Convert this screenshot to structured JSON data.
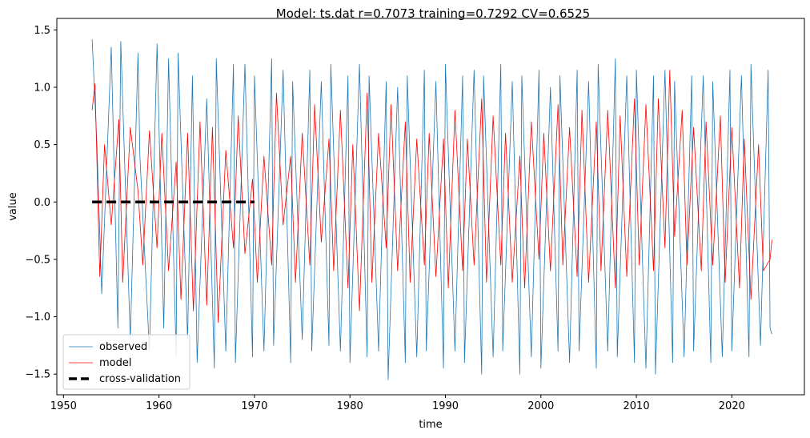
{
  "chart_data": {
    "type": "line",
    "title": "Model: ts.dat  r=0.7073  training=0.7292  CV=0.6525",
    "xlabel": "time",
    "ylabel": "value",
    "xlim": [
      1949.3,
      2027.6
    ],
    "ylim": [
      -1.68,
      1.6
    ],
    "x_ticks": [
      1950,
      1960,
      1970,
      1980,
      1990,
      2000,
      2010,
      2020
    ],
    "y_ticks": [
      -1.5,
      -1.0,
      -0.5,
      0.0,
      0.5,
      1.0,
      1.5
    ],
    "x_tick_labels": [
      "1950",
      "1960",
      "1970",
      "1980",
      "1990",
      "2000",
      "2010",
      "2020"
    ],
    "y_tick_labels": [
      "−1.5",
      "−1.0",
      "−0.5",
      "0.0",
      "0.5",
      "1.0",
      "1.5"
    ],
    "legend_position": "lower-left",
    "series": [
      {
        "name": "observed",
        "color": "#1f77b4",
        "x": [
          1953.0,
          1953.5,
          1954.0,
          1955.0,
          1955.7,
          1956.0,
          1957.0,
          1957.8,
          1958.0,
          1959.0,
          1959.8,
          1960.5,
          1961.0,
          1961.8,
          1962.0,
          1963.0,
          1963.5,
          1964.0,
          1965.0,
          1965.8,
          1966.0,
          1967.0,
          1967.8,
          1968.0,
          1969.0,
          1969.8,
          1970.0,
          1971.0,
          1971.8,
          1972.0,
          1973.0,
          1973.8,
          1974.0,
          1975.0,
          1975.8,
          1976.0,
          1977.0,
          1977.8,
          1978.0,
          1979.0,
          1979.8,
          1980.0,
          1981.0,
          1981.8,
          1982.0,
          1983.0,
          1983.8,
          1984.0,
          1985.0,
          1985.8,
          1986.0,
          1987.0,
          1987.8,
          1988.0,
          1989.0,
          1989.8,
          1990.0,
          1991.0,
          1991.8,
          1992.0,
          1993.0,
          1993.8,
          1994.0,
          1995.0,
          1995.8,
          1996.0,
          1997.0,
          1997.8,
          1998.0,
          1999.0,
          1999.8,
          2000.0,
          2001.0,
          2001.8,
          2002.0,
          2003.0,
          2003.8,
          2004.0,
          2005.0,
          2005.8,
          2006.0,
          2007.0,
          2007.8,
          2008.0,
          2009.0,
          2009.8,
          2010.0,
          2011.0,
          2011.8,
          2012.0,
          2013.0,
          2013.8,
          2014.0,
          2015.0,
          2015.8,
          2016.0,
          2017.0,
          2017.8,
          2018.0,
          2019.0,
          2019.8,
          2020.0,
          2021.0,
          2021.8,
          2022.0,
          2023.0,
          2023.8,
          2024.0,
          2024.2
        ],
        "y": [
          1.42,
          0.5,
          -0.8,
          1.35,
          -1.1,
          1.4,
          -1.2,
          1.3,
          0.4,
          -1.3,
          1.38,
          -1.1,
          1.25,
          -1.35,
          1.3,
          -1.2,
          1.1,
          -1.4,
          0.9,
          -1.45,
          1.25,
          -1.3,
          1.2,
          -1.4,
          1.2,
          -1.35,
          1.1,
          -1.3,
          1.25,
          -1.25,
          1.15,
          -1.4,
          1.05,
          -1.2,
          1.15,
          -1.3,
          1.05,
          -1.25,
          1.2,
          -1.3,
          1.1,
          -1.4,
          1.2,
          -1.35,
          1.1,
          -1.3,
          1.05,
          -1.55,
          1.0,
          -1.4,
          1.1,
          -1.35,
          1.15,
          -1.3,
          1.05,
          -1.45,
          1.2,
          -1.3,
          1.1,
          -1.4,
          1.15,
          -1.5,
          1.1,
          -1.35,
          1.2,
          -1.3,
          1.05,
          -1.5,
          1.1,
          -1.35,
          1.15,
          -1.45,
          1.0,
          -1.3,
          1.1,
          -1.4,
          1.15,
          -1.3,
          1.05,
          -1.45,
          1.2,
          -1.3,
          1.25,
          -1.35,
          1.1,
          -1.4,
          1.15,
          -1.45,
          1.1,
          -1.5,
          1.15,
          -1.4,
          1.05,
          -1.35,
          1.1,
          -1.3,
          1.1,
          -1.4,
          1.05,
          -1.35,
          1.15,
          -1.3,
          1.1,
          -1.35,
          1.2,
          -1.25,
          1.15,
          -1.1,
          -1.15
        ]
      },
      {
        "name": "model",
        "color": "#ff0000",
        "x": [
          1953.0,
          1953.3,
          1953.8,
          1954.3,
          1955.0,
          1955.8,
          1956.2,
          1957.0,
          1957.8,
          1958.3,
          1959.0,
          1959.8,
          1960.3,
          1961.0,
          1961.8,
          1962.3,
          1963.0,
          1963.6,
          1964.3,
          1965.0,
          1965.6,
          1966.2,
          1967.0,
          1967.8,
          1968.3,
          1969.0,
          1969.8,
          1970.3,
          1971.0,
          1971.8,
          1972.3,
          1973.0,
          1973.8,
          1974.3,
          1975.0,
          1975.8,
          1976.3,
          1977.0,
          1977.8,
          1978.3,
          1979.0,
          1979.8,
          1980.3,
          1981.0,
          1981.8,
          1982.3,
          1983.0,
          1983.8,
          1984.3,
          1985.0,
          1985.8,
          1986.3,
          1987.0,
          1987.8,
          1988.3,
          1989.0,
          1989.8,
          1990.3,
          1991.0,
          1991.8,
          1992.3,
          1993.0,
          1993.8,
          1994.3,
          1995.0,
          1995.8,
          1996.3,
          1997.0,
          1997.8,
          1998.3,
          1999.0,
          1999.8,
          2000.3,
          2001.0,
          2001.8,
          2002.3,
          2003.0,
          2003.8,
          2004.3,
          2005.0,
          2005.8,
          2006.3,
          2007.0,
          2007.8,
          2008.3,
          2009.0,
          2009.8,
          2010.3,
          2011.0,
          2011.8,
          2012.3,
          2013.0,
          2013.5,
          2014.0,
          2014.8,
          2015.3,
          2016.0,
          2016.8,
          2017.3,
          2018.0,
          2018.8,
          2019.3,
          2020.0,
          2020.8,
          2021.3,
          2022.0,
          2022.8,
          2023.3,
          2024.0,
          2024.2
        ],
        "y": [
          0.8,
          1.03,
          -0.65,
          0.5,
          -0.2,
          0.72,
          -0.7,
          0.65,
          0.1,
          -0.55,
          0.62,
          -0.4,
          0.6,
          -0.6,
          0.35,
          -0.85,
          0.6,
          -0.95,
          0.7,
          -0.9,
          0.65,
          -1.05,
          0.45,
          -0.4,
          0.75,
          -0.45,
          0.2,
          -0.7,
          0.4,
          -0.55,
          0.95,
          -0.2,
          0.4,
          -0.7,
          0.6,
          -0.55,
          0.85,
          -0.35,
          0.55,
          -0.6,
          0.8,
          -0.75,
          0.5,
          -0.95,
          0.95,
          -0.7,
          0.6,
          -0.4,
          0.85,
          -0.6,
          0.7,
          -0.7,
          0.55,
          -0.55,
          0.6,
          -0.65,
          0.55,
          -0.75,
          0.8,
          -0.6,
          0.55,
          -0.55,
          0.9,
          -0.7,
          0.75,
          -0.55,
          0.6,
          -0.7,
          0.4,
          -0.75,
          0.7,
          -0.5,
          0.6,
          -0.6,
          0.85,
          -0.55,
          0.65,
          -0.65,
          0.8,
          -0.7,
          0.7,
          -0.6,
          0.8,
          -0.75,
          0.75,
          -0.65,
          0.9,
          -0.55,
          0.85,
          -0.6,
          0.9,
          -0.4,
          1.15,
          -0.3,
          0.8,
          -0.55,
          0.65,
          -0.6,
          0.7,
          -0.55,
          0.75,
          -0.7,
          0.65,
          -0.75,
          0.55,
          -0.85,
          0.5,
          -0.6,
          -0.5,
          -0.33
        ]
      },
      {
        "name": "cross-validation",
        "color": "#000000",
        "style": "dashed",
        "x": [
          1953.0,
          1970.0
        ],
        "y": [
          0.0,
          0.0
        ]
      }
    ]
  }
}
